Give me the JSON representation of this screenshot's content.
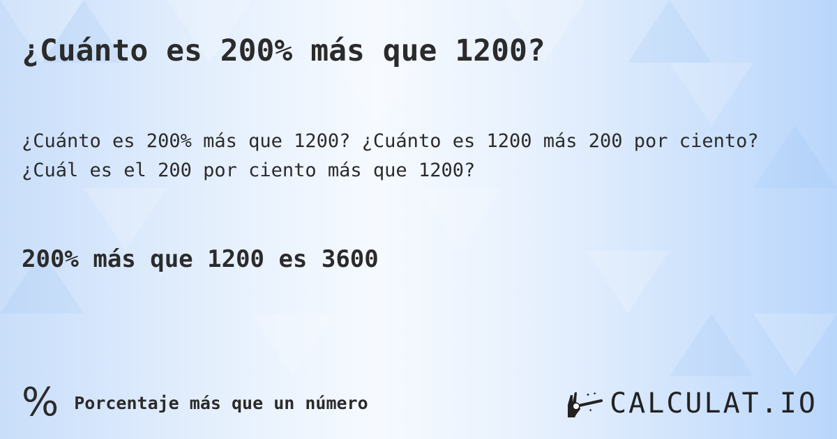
{
  "title": "¿Cuánto es 200% más que 1200?",
  "description": "¿Cuánto es 200% más que 1200? ¿Cuánto es 1200 más 200 por ciento? ¿Cuál es el 200 por ciento más que 1200?",
  "answer": "200% más que 1200 es 3600",
  "footer": {
    "icon": "percent-icon",
    "symbol": "%",
    "category": "Porcentaje más que un número"
  },
  "logo": {
    "text": "CALCULAT.IO",
    "icon": "magic-hand-wand-icon"
  }
}
